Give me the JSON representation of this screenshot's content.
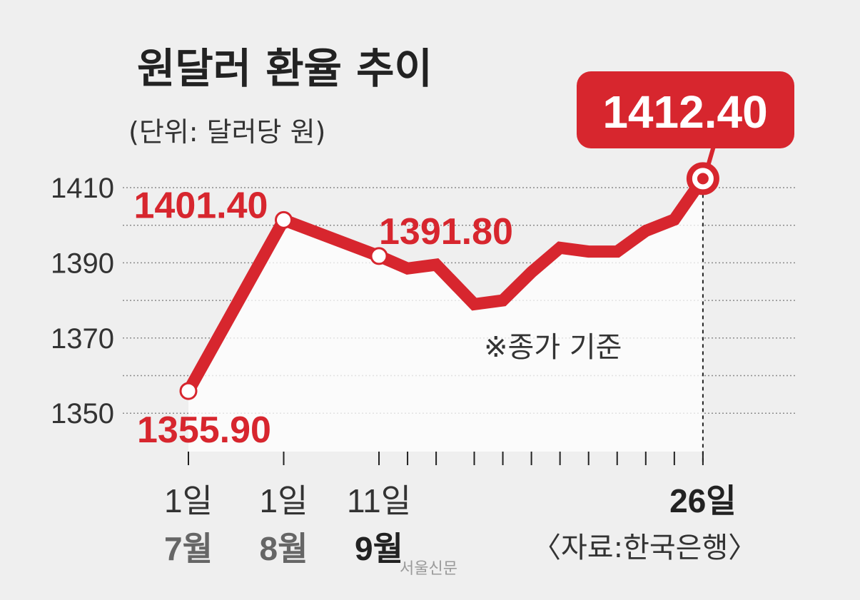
{
  "colors": {
    "accent": "#d7262e",
    "background": "#efefef",
    "text": "#222222",
    "grid": "#8c8c8c"
  },
  "chart_data": {
    "type": "line",
    "title": "원달러 환율 추이",
    "subtitle": "(단위: 달러당 원)",
    "ylim": [
      1340,
      1420
    ],
    "yticks": [
      "1410",
      "1390",
      "1370",
      "1350"
    ],
    "ytick_values": [
      1410,
      1390,
      1370,
      1350
    ],
    "grid": true,
    "series": [
      {
        "values": [
          1355.9,
          1401.4,
          1391.8,
          1388.5,
          1389.5,
          1379.0,
          1380.0,
          1387.5,
          1394.0,
          1393.0,
          1393.0,
          1398.5,
          1401.5,
          1412.4
        ]
      }
    ],
    "x_positions": [
      0,
      1,
      2,
      2.3,
      2.6,
      3.0,
      3.3,
      3.6,
      3.9,
      4.2,
      4.5,
      4.8,
      5.1,
      5.4
    ],
    "tick_positions": [
      0,
      1,
      2,
      2.3,
      2.6,
      3.0,
      3.3,
      3.6,
      3.9,
      4.2,
      4.5,
      4.8,
      5.1,
      5.4
    ],
    "highlight_points": [
      0,
      1,
      2
    ],
    "last_point": 13,
    "data_labels": [
      {
        "point": 0,
        "text": "1355.90"
      },
      {
        "point": 1,
        "text": "1401.40"
      },
      {
        "point": 2,
        "text": "1391.80"
      }
    ],
    "callout": {
      "point": 13,
      "text": "1412.40"
    },
    "x_labels": [
      {
        "pos": 0,
        "day": "1일",
        "month": "7월"
      },
      {
        "pos": 1,
        "day": "1일",
        "month": "8월"
      },
      {
        "pos": 2,
        "day": "11일",
        "month": "9월"
      },
      {
        "pos": 5.4,
        "day": "26일",
        "month": ""
      }
    ],
    "note": "※종가 기준",
    "source": "〈자료:한국은행〉"
  },
  "watermark": "서울신문"
}
